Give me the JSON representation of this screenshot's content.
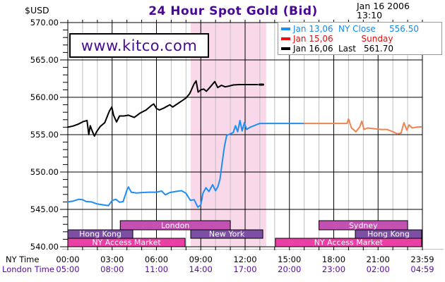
{
  "header": {
    "currency_label": "$USD",
    "date_line1": "Jan 16 2006",
    "date_line2": "13:10"
  },
  "watermark": {
    "text": "www.kitco.com",
    "color": "#4A0A94"
  },
  "legend": {
    "rows": [
      {
        "marker_color": "#1E8EF5",
        "text_color": "#1787EE",
        "date": "Jan 13,06",
        "label": "NY Close",
        "value": "556.50"
      },
      {
        "marker_color": "#F01010",
        "text_color": "#E01010",
        "date": "Jan 15,06",
        "label": "Sunday",
        "value": ""
      },
      {
        "marker_color": "#000000",
        "text_color": "#000000",
        "date": "Jan 16,06",
        "label": "Last",
        "value": "561.70"
      }
    ]
  },
  "chart_data": {
    "type": "line",
    "title": "24 Hour Spot Gold (Bid)",
    "colors": {
      "grid_minor": "#BFBFBF",
      "grid_major": "#000000",
      "band": "#F9D9E9",
      "london_text": "#5A0A9E"
    },
    "y_axis": {
      "min": 540,
      "max": 570,
      "major_step": 5,
      "minor_step": 1,
      "labels": [
        "570.00",
        "565.00",
        "560.00",
        "555.00",
        "550.00",
        "545.00",
        "540.00"
      ]
    },
    "x_axis": {
      "ny_label": "NY Time",
      "london_label": "London Time",
      "hours": [
        0,
        3,
        6,
        9,
        12,
        15,
        18,
        21,
        24
      ],
      "ny_times": [
        "00:00",
        "03:00",
        "06:00",
        "09:00",
        "12:00",
        "15:00",
        "18:00",
        "21:00",
        "23:59"
      ],
      "london_times": [
        "05:00",
        "08:00",
        "11:00",
        "14:00",
        "17:00",
        "20:00",
        "23:00",
        "02:00",
        "04:59"
      ]
    },
    "highlight_band": {
      "start_hour": 8.32,
      "end_hour": 13.43,
      "color": "#F9D9E9"
    },
    "sessions": [
      {
        "label": "London",
        "row": 0,
        "start": 3.55,
        "end": 11.0,
        "color": "#C251B2"
      },
      {
        "label": "Sydney",
        "row": 0,
        "start": 17.0,
        "end": 23.0,
        "color": "#C251B2"
      },
      {
        "label": "Hong Kong",
        "row": 1,
        "start": 0.0,
        "end": 4.4,
        "color": "#7C4FA5"
      },
      {
        "label": "New York",
        "row": 1,
        "start": 8.32,
        "end": 13.2,
        "color": "#7C4FA5"
      },
      {
        "label": "Hong Kong",
        "row": 1,
        "start": 19.46,
        "end": 23.95,
        "color": "#7C4FA5"
      },
      {
        "label": "NY Access Market",
        "row": 2,
        "start": 0.0,
        "end": 7.94,
        "color": "#EA3FA4"
      },
      {
        "label": "NY Access Market",
        "row": 2,
        "start": 14.05,
        "end": 23.95,
        "color": "#EA3FA4"
      }
    ],
    "series": [
      {
        "name": "jan-13-ny-close",
        "legend": "Jan 13,06 NY Close 556.50",
        "color": "#1E8EF5",
        "width": 2,
        "points": [
          [
            0.0,
            546.0
          ],
          [
            0.35,
            546.1
          ],
          [
            0.75,
            546.35
          ],
          [
            1.0,
            546.3
          ],
          [
            1.25,
            546.05
          ],
          [
            1.6,
            546.0
          ],
          [
            1.95,
            545.75
          ],
          [
            2.4,
            545.6
          ],
          [
            2.75,
            545.5
          ],
          [
            3.0,
            546.2
          ],
          [
            3.25,
            546.35
          ],
          [
            3.5,
            545.95
          ],
          [
            3.75,
            546.05
          ],
          [
            4.0,
            547.6
          ],
          [
            4.1,
            548.0
          ],
          [
            4.3,
            547.3
          ],
          [
            4.65,
            547.2
          ],
          [
            5.0,
            547.25
          ],
          [
            5.5,
            547.3
          ],
          [
            6.0,
            547.3
          ],
          [
            6.35,
            547.45
          ],
          [
            6.6,
            546.95
          ],
          [
            6.9,
            547.25
          ],
          [
            7.3,
            547.4
          ],
          [
            7.7,
            547.5
          ],
          [
            8.0,
            547.15
          ],
          [
            8.3,
            546.2
          ],
          [
            8.55,
            546.3
          ],
          [
            8.8,
            545.3
          ],
          [
            9.0,
            545.6
          ],
          [
            9.15,
            547.2
          ],
          [
            9.35,
            547.9
          ],
          [
            9.55,
            547.4
          ],
          [
            9.8,
            548.3
          ],
          [
            10.0,
            547.5
          ],
          [
            10.15,
            548.0
          ],
          [
            10.3,
            549.0
          ],
          [
            10.45,
            551.3
          ],
          [
            10.6,
            553.4
          ],
          [
            10.75,
            554.9
          ],
          [
            11.0,
            555.1
          ],
          [
            11.2,
            555.3
          ],
          [
            11.35,
            556.2
          ],
          [
            11.5,
            555.4
          ],
          [
            11.65,
            556.9
          ],
          [
            11.8,
            555.5
          ],
          [
            11.95,
            556.6
          ],
          [
            12.1,
            555.7
          ],
          [
            12.35,
            556.0
          ],
          [
            12.6,
            556.2
          ],
          [
            12.85,
            556.4
          ],
          [
            13.0,
            556.5
          ],
          [
            16.0,
            556.5
          ]
        ]
      },
      {
        "name": "jan-15-sunday",
        "legend": "Jan 15,06 Sunday",
        "color": "#F08352",
        "width": 2,
        "points": [
          [
            16.0,
            556.5
          ],
          [
            18.9,
            556.5
          ],
          [
            19.0,
            557.1
          ],
          [
            19.2,
            555.9
          ],
          [
            19.5,
            555.4
          ],
          [
            19.75,
            556.0
          ],
          [
            19.9,
            556.8
          ],
          [
            20.05,
            555.7
          ],
          [
            20.3,
            555.9
          ],
          [
            20.7,
            555.8
          ],
          [
            21.2,
            555.7
          ],
          [
            21.6,
            555.7
          ],
          [
            22.0,
            555.4
          ],
          [
            22.3,
            555.1
          ],
          [
            22.55,
            555.2
          ],
          [
            22.75,
            556.6
          ],
          [
            22.95,
            555.6
          ],
          [
            23.1,
            556.3
          ],
          [
            23.3,
            555.9
          ],
          [
            23.6,
            556.0
          ],
          [
            23.95,
            556.05
          ]
        ]
      },
      {
        "name": "jan-16-last",
        "legend": "Jan 16,06 Last 561.70",
        "color": "#000000",
        "width": 2,
        "points": [
          [
            0.0,
            556.0
          ],
          [
            0.35,
            556.15
          ],
          [
            0.7,
            556.4
          ],
          [
            1.05,
            556.75
          ],
          [
            1.3,
            556.9
          ],
          [
            1.42,
            555.0
          ],
          [
            1.52,
            556.2
          ],
          [
            1.65,
            555.5
          ],
          [
            1.8,
            554.8
          ],
          [
            1.95,
            555.4
          ],
          [
            2.2,
            556.1
          ],
          [
            2.5,
            556.6
          ],
          [
            2.8,
            558.1
          ],
          [
            2.98,
            558.7
          ],
          [
            3.1,
            557.6
          ],
          [
            3.3,
            556.7
          ],
          [
            3.5,
            557.5
          ],
          [
            3.8,
            557.5
          ],
          [
            4.1,
            557.6
          ],
          [
            4.5,
            557.3
          ],
          [
            4.9,
            557.9
          ],
          [
            5.3,
            558.3
          ],
          [
            5.65,
            558.9
          ],
          [
            5.82,
            559.1
          ],
          [
            6.0,
            558.5
          ],
          [
            6.2,
            558.3
          ],
          [
            6.55,
            558.6
          ],
          [
            6.9,
            559.0
          ],
          [
            7.1,
            558.7
          ],
          [
            7.4,
            559.1
          ],
          [
            7.7,
            559.5
          ],
          [
            8.0,
            559.9
          ],
          [
            8.25,
            560.5
          ],
          [
            8.55,
            561.8
          ],
          [
            8.68,
            562.2
          ],
          [
            8.82,
            560.7
          ],
          [
            9.0,
            561.0
          ],
          [
            9.2,
            561.1
          ],
          [
            9.38,
            560.8
          ],
          [
            9.65,
            561.4
          ],
          [
            9.95,
            562.1
          ],
          [
            10.15,
            561.3
          ],
          [
            10.4,
            561.6
          ],
          [
            10.65,
            561.4
          ],
          [
            10.9,
            561.5
          ],
          [
            11.2,
            561.65
          ],
          [
            11.6,
            561.7
          ],
          [
            12.85,
            561.7
          ]
        ]
      },
      {
        "name": "last-price-marker",
        "legend": "",
        "color": "#000000",
        "width": 3,
        "points": [
          [
            12.98,
            561.7
          ],
          [
            13.22,
            561.7
          ]
        ]
      }
    ]
  }
}
